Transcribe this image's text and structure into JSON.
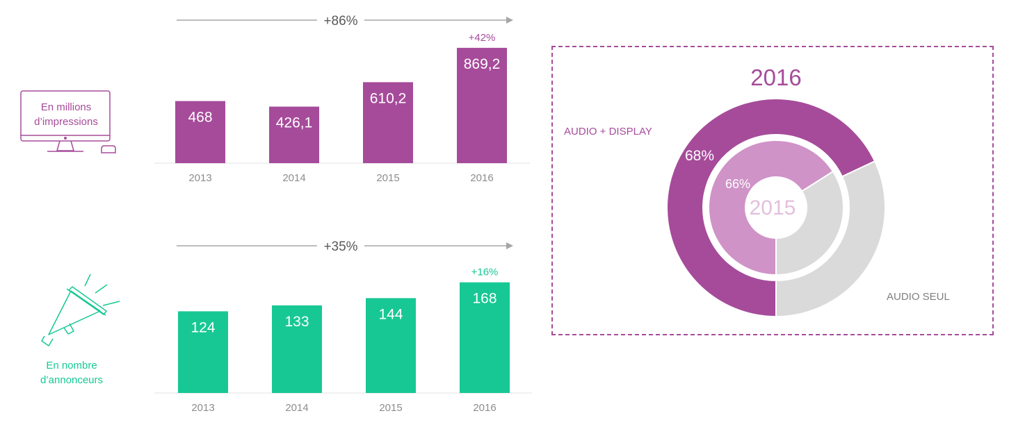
{
  "colors": {
    "purple": "#a64b9a",
    "light_purple": "#cf93c7",
    "teal": "#17c894",
    "gray": "#dadada",
    "axis_text": "#8c8c8c",
    "arrow": "#a6a6a6"
  },
  "impressions_panel": {
    "caption_line1": "En millions",
    "caption_line2": "d’impressions",
    "icon": "desktop-computer-icon",
    "growth_total": "+86%",
    "growth_last": "+42%"
  },
  "advertisers_panel": {
    "caption_line1": "En nombre",
    "caption_line2": "d’annonceurs",
    "icon": "megaphone-icon",
    "growth_total": "+35%",
    "growth_last": "+16%"
  },
  "donut_panel": {
    "outer_year": "2016",
    "inner_year": "2015",
    "label_audio_display": "AUDIO + DISPLAY",
    "label_audio_only": "AUDIO SEUL",
    "outer_pct_label": "68%",
    "inner_pct_label": "66%"
  },
  "chart_data": [
    {
      "type": "bar",
      "categories": [
        "2013",
        "2014",
        "2015",
        "2016"
      ],
      "values": [
        468,
        426.1,
        610.2,
        869.2
      ],
      "value_labels": [
        "468",
        "426,1",
        "610,2",
        "869,2"
      ],
      "ylim": [
        0,
        900
      ]
    },
    {
      "type": "bar",
      "categories": [
        "2013",
        "2014",
        "2015",
        "2016"
      ],
      "values": [
        124,
        133,
        144,
        168
      ],
      "value_labels": [
        "124",
        "133",
        "144",
        "168"
      ],
      "ylim": [
        0,
        175
      ]
    },
    {
      "type": "pie",
      "series": [
        {
          "name": "2016",
          "categories": [
            "AUDIO + DISPLAY",
            "AUDIO SEUL"
          ],
          "values": [
            68,
            32
          ]
        },
        {
          "name": "2015",
          "categories": [
            "AUDIO + DISPLAY",
            "AUDIO SEUL"
          ],
          "values": [
            66,
            34
          ]
        }
      ]
    }
  ]
}
